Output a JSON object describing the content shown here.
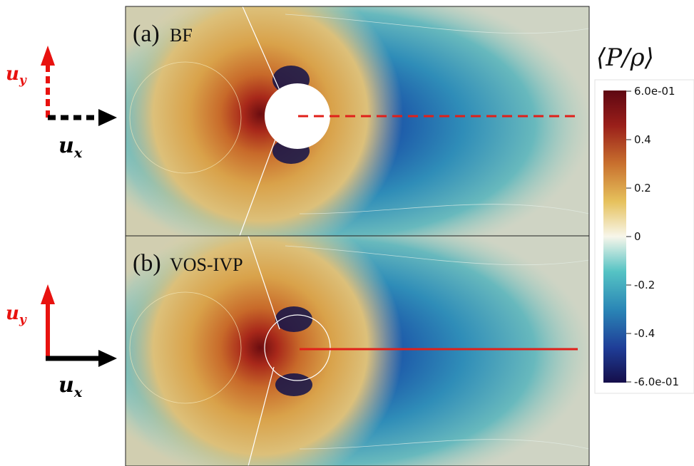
{
  "panels": [
    {
      "letter": "(a)",
      "name": "BF"
    },
    {
      "letter": "(b)",
      "name": "VOS-IVP"
    }
  ],
  "vectors": {
    "top": {
      "uy": "u",
      "uy_sub": "y",
      "ux": "u",
      "ux_sub": "x",
      "style": "dotted"
    },
    "bottom": {
      "uy": "u",
      "uy_sub": "y",
      "ux": "u",
      "ux_sub": "x",
      "style": "solid"
    }
  },
  "colorbar": {
    "title": "⟨P/ρ⟩",
    "ticks": [
      "6.0e-01",
      "0.4",
      "0.2",
      "0",
      "-0.2",
      "-0.4",
      "-6.0e-01"
    ],
    "range": [
      -0.6,
      0.6
    ]
  },
  "colors": {
    "arrow_red": "#e8120f",
    "arrow_black": "#000000",
    "centerline_red": "#e0201a",
    "positive_max": "#5e0712",
    "negative_max": "#150e4a",
    "zero": "#f7f6ea"
  }
}
